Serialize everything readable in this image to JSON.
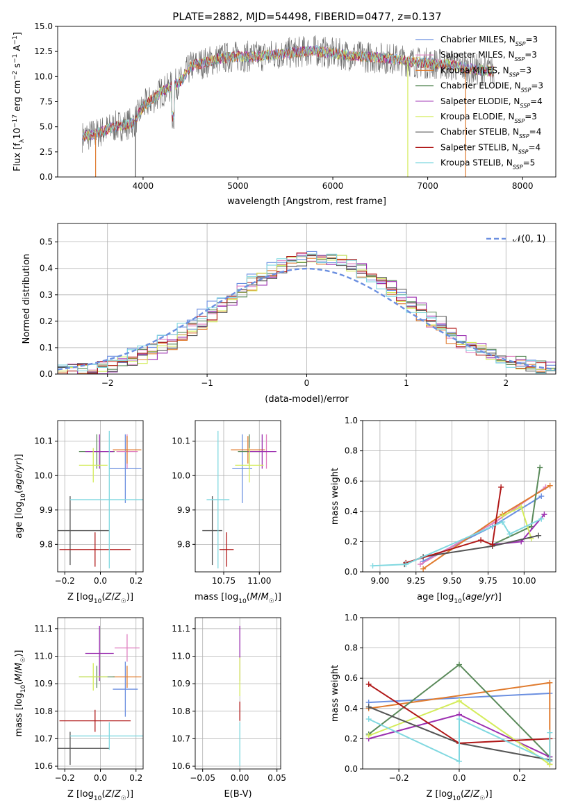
{
  "figure": {
    "title": "PLATE=2882, MJD=54498, FIBERID=0477, z=0.137"
  },
  "palette": {
    "Chabrier MILES": "#6b8fe0",
    "Salpeter MILES": "#e07fc0",
    "Kroupa MILES": "#e07b2e",
    "Chabrier ELODIE": "#5a8a5a",
    "Salpeter ELODIE": "#9b2fb0",
    "Kroupa ELODIE": "#d4ec5a",
    "Chabrier STELIB": "#555555",
    "Salpeter STELIB": "#b01818",
    "Kroupa STELIB": "#80d8e0"
  },
  "chart_data": [
    {
      "id": "spectrum",
      "type": "line",
      "xlabel": "wavelength [Angstrom, rest frame]",
      "ylabel": "Flux [f_λ 10^-17 erg cm^-2 s^-1 A^-1]",
      "xlim": [
        3100,
        8350
      ],
      "ylim": [
        0,
        15
      ],
      "xticks": [
        "4000",
        "5000",
        "6000",
        "7000",
        "8000"
      ],
      "yticks": [
        "0.0",
        "2.5",
        "5.0",
        "7.5",
        "10.0",
        "12.5",
        "15.0"
      ],
      "grid": false,
      "legend_position": "top-right",
      "legend": [
        {
          "label": "Chabrier MILES, N_SSP=3",
          "base": "Chabrier MILES, N",
          "sub": "SSP",
          "suffix": "=3"
        },
        {
          "label": "Salpeter MILES, N_SSP=3",
          "base": "Salpeter MILES, N",
          "sub": "SSP",
          "suffix": "=3"
        },
        {
          "label": "Kroupa MILES, N_SSP=3",
          "base": "Kroupa MILES, N",
          "sub": "SSP",
          "suffix": "=3"
        },
        {
          "label": "Chabrier ELODIE, N_SSP=3",
          "base": "Chabrier ELODIE, N",
          "sub": "SSP",
          "suffix": "=3"
        },
        {
          "label": "Salpeter ELODIE, N_SSP=4",
          "base": "Salpeter ELODIE, N",
          "sub": "SSP",
          "suffix": "=4"
        },
        {
          "label": "Kroupa ELODIE, N_SSP=3",
          "base": "Kroupa ELODIE, N",
          "sub": "SSP",
          "suffix": "=3"
        },
        {
          "label": "Chabrier STELIB, N_SSP=4",
          "base": "Chabrier STELIB, N",
          "sub": "SSP",
          "suffix": "=4"
        },
        {
          "label": "Salpeter STELIB, N_SSP=4",
          "base": "Salpeter STELIB, N",
          "sub": "SSP",
          "suffix": "=4"
        },
        {
          "label": "Kroupa STELIB, N_SSP=5",
          "base": "Kroupa STELIB, N",
          "sub": "SSP",
          "suffix": "=5"
        }
      ],
      "continuum": {
        "x": [
          3350,
          3500,
          3700,
          3900,
          4000,
          4200,
          4400,
          4500,
          4800,
          5000,
          5200,
          5500,
          5800,
          6000,
          6300,
          6600,
          6900,
          7200,
          7500,
          7700
        ],
        "y": [
          4.0,
          4.3,
          5.0,
          5.4,
          7.0,
          8.5,
          9.5,
          11.0,
          11.8,
          12.0,
          12.0,
          12.3,
          12.6,
          12.3,
          12.0,
          11.8,
          11.4,
          11.2,
          10.7,
          10.5
        ]
      },
      "dropouts": [
        {
          "x": 3500,
          "series": "Kroupa MILES"
        },
        {
          "x": 3920,
          "series": "Chabrier STELIB"
        },
        {
          "x": 6790,
          "series": "Kroupa ELODIE"
        },
        {
          "x": 7400,
          "series": "Kroupa MILES"
        }
      ]
    },
    {
      "id": "residuals",
      "type": "histogram",
      "xlabel": "(data-model)/error",
      "ylabel": "Normed distribution",
      "xlim": [
        -2.5,
        2.5
      ],
      "ylim": [
        0,
        0.57
      ],
      "xticks": [
        "−2",
        "−1",
        "0",
        "1",
        "2"
      ],
      "yticks": [
        "0.0",
        "0.1",
        "0.2",
        "0.3",
        "0.4",
        "0.5"
      ],
      "grid": true,
      "legend_position": "top-right",
      "reference_curve": {
        "label": "𝒩(0, 1)",
        "mean": 0.0,
        "sigma": 1.0
      },
      "bin_width": 0.1,
      "series_order": [
        "Chabrier MILES",
        "Salpeter MILES",
        "Kroupa MILES",
        "Chabrier ELODIE",
        "Salpeter ELODIE",
        "Kroupa ELODIE",
        "Chabrier STELIB",
        "Salpeter STELIB",
        "Kroupa STELIB"
      ],
      "base_peak": 0.44,
      "base_mean": 0.12,
      "base_sigma": 0.92
    },
    {
      "id": "age-vs-Z",
      "type": "errorbar",
      "xlabel": "Z [log10(Z/Z☉)]",
      "ylabel": "age [log10(age/yr)]",
      "xlim": [
        -0.24,
        0.24
      ],
      "ylim": [
        9.72,
        10.16
      ],
      "xticks": [
        "−0.2",
        "0.0",
        "0.2"
      ],
      "yticks": [
        "9.8",
        "9.9",
        "10.0",
        "10.1"
      ],
      "grid": true,
      "points": [
        {
          "series": "Chabrier MILES",
          "x": 0.14,
          "y": 10.02,
          "xerr": 0.09,
          "yerr": 0.1
        },
        {
          "series": "Salpeter MILES",
          "x": 0.15,
          "y": 10.07,
          "xerr": 0.06,
          "yerr": 0.05
        },
        {
          "series": "Kroupa MILES",
          "x": 0.15,
          "y": 10.075,
          "xerr": 0.08,
          "yerr": 0.04
        },
        {
          "series": "Chabrier ELODIE",
          "x": -0.02,
          "y": 10.07,
          "xerr": 0.1,
          "yerr": 0.05
        },
        {
          "series": "Salpeter ELODIE",
          "x": -0.005,
          "y": 10.07,
          "xerr": 0.08,
          "yerr": 0.05
        },
        {
          "series": "Kroupa ELODIE",
          "x": -0.04,
          "y": 10.03,
          "xerr": 0.08,
          "yerr": 0.05
        },
        {
          "series": "Chabrier STELIB",
          "x": -0.17,
          "y": 9.84,
          "xerr": 0.22,
          "yerr": 0.1
        },
        {
          "series": "Salpeter STELIB",
          "x": -0.03,
          "y": 9.785,
          "xerr": 0.2,
          "yerr": 0.05
        },
        {
          "series": "Kroupa STELIB",
          "x": 0.05,
          "y": 9.93,
          "xerr": 0.22,
          "yerr": 0.2
        }
      ]
    },
    {
      "id": "age-vs-mass",
      "type": "errorbar",
      "xlabel": "mass [log10(M/M☉)]",
      "ylabel": "",
      "xlim": [
        10.55,
        11.15
      ],
      "ylim": [
        9.72,
        10.16
      ],
      "xticks": [
        "10.75",
        "11.00"
      ],
      "yticks": [
        "9.8",
        "9.9",
        "10.0",
        "10.1"
      ],
      "grid": true,
      "points": [
        {
          "series": "Chabrier MILES",
          "x": 10.88,
          "y": 10.02,
          "xerr": 0.07,
          "yerr": 0.1
        },
        {
          "series": "Salpeter MILES",
          "x": 11.05,
          "y": 10.07,
          "xerr": 0.06,
          "yerr": 0.05
        },
        {
          "series": "Kroupa MILES",
          "x": 10.92,
          "y": 10.075,
          "xerr": 0.12,
          "yerr": 0.04
        },
        {
          "series": "Chabrier ELODIE",
          "x": 10.93,
          "y": 10.07,
          "xerr": 0.08,
          "yerr": 0.05
        },
        {
          "series": "Salpeter ELODIE",
          "x": 11.02,
          "y": 10.07,
          "xerr": 0.1,
          "yerr": 0.05
        },
        {
          "series": "Kroupa ELODIE",
          "x": 10.93,
          "y": 10.03,
          "xerr": 0.1,
          "yerr": 0.05
        },
        {
          "series": "Chabrier STELIB",
          "x": 10.67,
          "y": 9.84,
          "xerr": 0.07,
          "yerr": 0.1
        },
        {
          "series": "Salpeter STELIB",
          "x": 10.77,
          "y": 9.785,
          "xerr": 0.05,
          "yerr": 0.05
        },
        {
          "series": "Kroupa STELIB",
          "x": 10.71,
          "y": 9.93,
          "xerr": 0.08,
          "yerr": 0.2
        }
      ]
    },
    {
      "id": "weight-vs-age",
      "type": "line",
      "xlabel": "age [log10(age/yr)]",
      "ylabel": "mass weight",
      "xlim": [
        8.88,
        10.22
      ],
      "ylim": [
        0,
        1
      ],
      "xticks": [
        "9.00",
        "9.25",
        "9.50",
        "9.75",
        "10.00"
      ],
      "yticks": [
        "0.0",
        "0.2",
        "0.4",
        "0.6",
        "0.8",
        "1.0"
      ],
      "grid": true,
      "series": [
        {
          "name": "Chabrier MILES",
          "x": [
            9.3,
            9.78,
            10.12
          ],
          "y": [
            0.07,
            0.3,
            0.5
          ]
        },
        {
          "name": "Salpeter MILES",
          "x": [
            9.28,
            9.8,
            10.15
          ],
          "y": [
            0.05,
            0.33,
            0.56
          ]
        },
        {
          "name": "Kroupa MILES",
          "x": [
            9.3,
            9.85,
            10.18
          ],
          "y": [
            0.02,
            0.38,
            0.57
          ]
        },
        {
          "name": "Chabrier ELODIE",
          "x": [
            9.78,
            10.05,
            10.11
          ],
          "y": [
            0.18,
            0.3,
            0.69
          ]
        },
        {
          "name": "Salpeter ELODIE",
          "x": [
            9.78,
            9.98,
            10.14
          ],
          "y": [
            0.18,
            0.2,
            0.38
          ]
        },
        {
          "name": "Kroupa ELODIE",
          "x": [
            9.85,
            9.98,
            10.05
          ],
          "y": [
            0.37,
            0.43,
            0.22
          ]
        },
        {
          "name": "Chabrier STELIB",
          "x": [
            9.17,
            9.3,
            9.78,
            10.1
          ],
          "y": [
            0.05,
            0.1,
            0.17,
            0.24
          ]
        },
        {
          "name": "Salpeter STELIB",
          "x": [
            9.18,
            9.7,
            9.78,
            9.84
          ],
          "y": [
            0.06,
            0.21,
            0.18,
            0.56
          ]
        },
        {
          "name": "Kroupa STELIB",
          "x": [
            8.95,
            9.18,
            9.85,
            9.9,
            10.12
          ],
          "y": [
            0.04,
            0.05,
            0.33,
            0.25,
            0.35
          ]
        }
      ]
    },
    {
      "id": "mass-vs-Z",
      "type": "errorbar",
      "xlabel": "Z [log10(Z/Z☉)]",
      "ylabel": "mass [log10(M/M☉)]",
      "xlim": [
        -0.24,
        0.24
      ],
      "ylim": [
        10.59,
        11.14
      ],
      "xticks": [
        "−0.2",
        "0.0",
        "0.2"
      ],
      "yticks": [
        "10.6",
        "10.7",
        "10.8",
        "10.9",
        "11.0",
        "11.1"
      ],
      "grid": true,
      "points": [
        {
          "series": "Chabrier MILES",
          "x": 0.14,
          "y": 10.88,
          "xerr": 0.07,
          "yerr": 0.1
        },
        {
          "series": "Salpeter MILES",
          "x": 0.15,
          "y": 11.03,
          "xerr": 0.07,
          "yerr": 0.05
        },
        {
          "series": "Kroupa MILES",
          "x": 0.15,
          "y": 10.925,
          "xerr": 0.08,
          "yerr": 0.04
        },
        {
          "series": "Chabrier ELODIE",
          "x": -0.02,
          "y": 10.925,
          "xerr": 0.1,
          "yerr": 0.04
        },
        {
          "series": "Salpeter ELODIE",
          "x": -0.005,
          "y": 11.01,
          "xerr": 0.08,
          "yerr": 0.1
        },
        {
          "series": "Kroupa ELODIE",
          "x": -0.04,
          "y": 10.925,
          "xerr": 0.08,
          "yerr": 0.05
        },
        {
          "series": "Chabrier STELIB",
          "x": -0.17,
          "y": 10.665,
          "xerr": 0.22,
          "yerr": 0.06
        },
        {
          "series": "Salpeter STELIB",
          "x": -0.03,
          "y": 10.765,
          "xerr": 0.2,
          "yerr": 0.04
        },
        {
          "series": "Kroupa STELIB",
          "x": 0.05,
          "y": 10.71,
          "xerr": 0.22,
          "yerr": 0.05
        }
      ]
    },
    {
      "id": "mass-vs-EBV",
      "type": "errorbar",
      "xlabel": "E(B-V)",
      "ylabel": "",
      "xlim": [
        -0.06,
        0.055
      ],
      "ylim": [
        10.59,
        11.14
      ],
      "xticks": [
        "−0.05",
        "0.00",
        "0.05"
      ],
      "yticks": [
        "10.6",
        "10.7",
        "10.8",
        "10.9",
        "11.0",
        "11.1"
      ],
      "grid": true,
      "points": [
        {
          "series": "Salpeter ELODIE",
          "x": 0.0,
          "y": 11.01,
          "xerr": 0,
          "yerr": 0.1
        },
        {
          "series": "Kroupa ELODIE",
          "x": 0.0,
          "y": 10.925,
          "xerr": 0,
          "yerr": 0.07
        },
        {
          "series": "Salpeter STELIB",
          "x": 0.0,
          "y": 10.8,
          "xerr": 0,
          "yerr": 0.035
        },
        {
          "series": "Kroupa STELIB",
          "x": 0.0,
          "y": 10.68,
          "xerr": 0,
          "yerr": 0.08
        }
      ]
    },
    {
      "id": "weight-vs-Z",
      "type": "line",
      "xlabel": "Z [log10(Z/Z☉)]",
      "ylabel": "mass weight",
      "xlim": [
        -0.32,
        0.32
      ],
      "ylim": [
        0,
        1
      ],
      "xticks": [
        "−0.2",
        "0.0",
        "0.2"
      ],
      "yticks": [
        "0.0",
        "0.2",
        "0.4",
        "0.6",
        "0.8",
        "1.0"
      ],
      "grid": true,
      "series": [
        {
          "name": "Chabrier MILES",
          "x": [
            -0.3,
            0.3
          ],
          "y": [
            0.44,
            0.5
          ]
        },
        {
          "name": "Kroupa MILES",
          "x": [
            -0.3,
            0.3,
            0.3
          ],
          "y": [
            0.4,
            0.57,
            0.03
          ]
        },
        {
          "name": "Chabrier ELODIE",
          "x": [
            -0.3,
            0.0,
            0.3
          ],
          "y": [
            0.23,
            0.69,
            0.08
          ]
        },
        {
          "name": "Salpeter ELODIE",
          "x": [
            -0.3,
            0.0,
            0.3
          ],
          "y": [
            0.2,
            0.36,
            0.08
          ]
        },
        {
          "name": "Kroupa ELODIE",
          "x": [
            -0.3,
            0.0,
            0.3
          ],
          "y": [
            0.22,
            0.45,
            0.03
          ]
        },
        {
          "name": "Chabrier STELIB",
          "x": [
            -0.3,
            0.0,
            0.3
          ],
          "y": [
            0.41,
            0.17,
            0.06
          ]
        },
        {
          "name": "Salpeter STELIB",
          "x": [
            -0.3,
            0.0,
            0.3
          ],
          "y": [
            0.56,
            0.17,
            0.2
          ]
        },
        {
          "name": "Kroupa STELIB",
          "x": [
            -0.3,
            0.0,
            0.0,
            0.3,
            0.3
          ],
          "y": [
            0.33,
            0.05,
            0.33,
            0.05,
            0.24
          ]
        }
      ]
    }
  ]
}
